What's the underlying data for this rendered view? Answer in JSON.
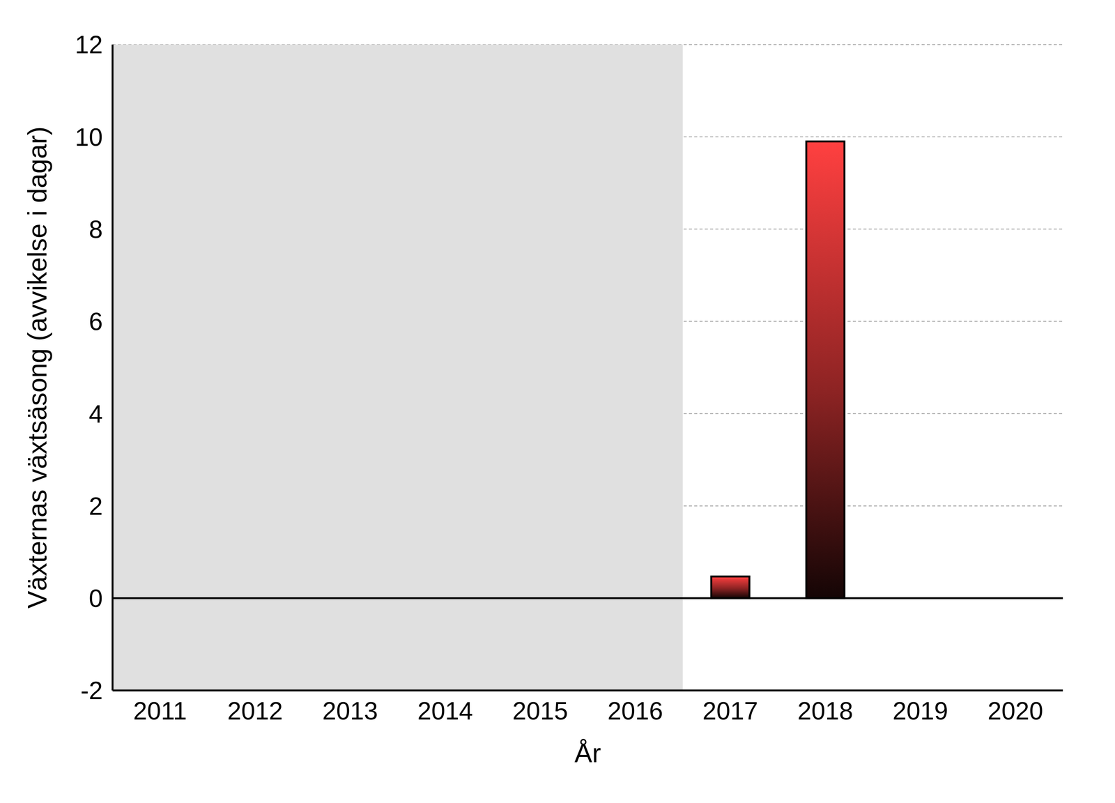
{
  "chart_data": {
    "type": "bar",
    "x_label": "År",
    "y_label": "Växternas växtsäsong (avvikelse i dagar)",
    "categories": [
      "2011",
      "2012",
      "2013",
      "2014",
      "2015",
      "2016",
      "2017",
      "2018",
      "2019",
      "2020"
    ],
    "values": [
      null,
      null,
      null,
      null,
      null,
      null,
      0.47,
      9.9,
      null,
      null
    ],
    "color": "#ff4040",
    "ylim": [
      -2,
      12
    ],
    "yticks": [
      -2,
      0,
      2,
      4,
      6,
      8,
      10,
      12
    ],
    "grid": true
  }
}
